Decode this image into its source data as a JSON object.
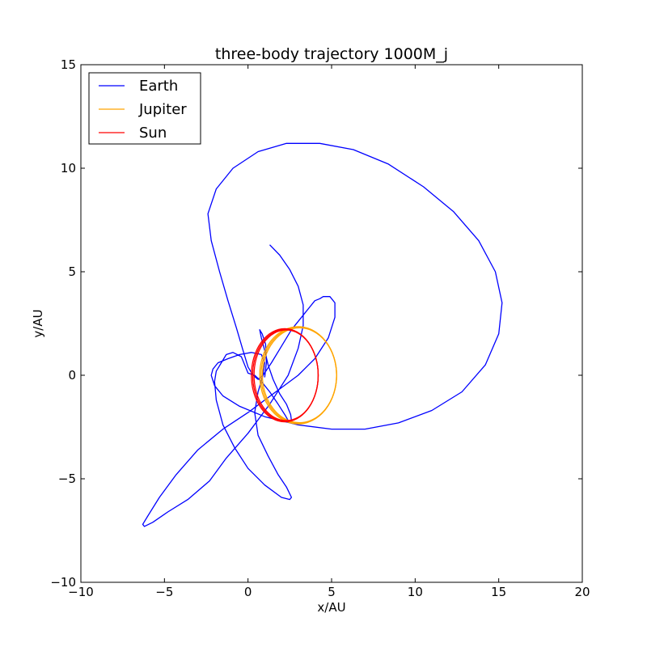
{
  "chart_data": {
    "type": "line",
    "title": "three-body trajectory 1000M_j",
    "xlabel": "x/AU",
    "ylabel": "y/AU",
    "xlim": [
      -10,
      20
    ],
    "ylim": [
      -10,
      15
    ],
    "xticks": [
      -10,
      -5,
      0,
      5,
      10,
      15,
      20
    ],
    "yticks": [
      -10,
      -5,
      0,
      5,
      10,
      15
    ],
    "xtick_labels": [
      "−10",
      "−5",
      "0",
      "5",
      "10",
      "15",
      "20"
    ],
    "ytick_labels": [
      "−10",
      "−5",
      "0",
      "5",
      "10",
      "15"
    ],
    "grid": false,
    "legend_position": "top-left",
    "series": [
      {
        "name": "Earth",
        "color": "#0000ff",
        "x": [
          1.0,
          1.1,
          1.05,
          0.85,
          0.7,
          0.8,
          1.0,
          1.2,
          1.5,
          1.9,
          2.3,
          2.55,
          2.6,
          2.45,
          2.2,
          1.8,
          1.3,
          0.8,
          0.4,
          0.0,
          -0.4,
          -0.9,
          -1.3,
          -1.6,
          -1.9,
          -2.0,
          -1.9,
          -1.5,
          -0.8,
          0.0,
          1.0,
          2.0,
          2.5,
          2.6,
          2.3,
          1.8,
          1.2,
          0.6,
          0.4,
          0.6,
          0.9,
          1.0,
          0.8,
          0.2,
          -0.5,
          -1.2,
          -1.8,
          -2.1,
          -2.2,
          -2.0,
          -1.5,
          -0.5,
          1.0,
          3.0,
          5.0,
          7.0,
          9.0,
          11.0,
          12.8,
          14.2,
          15.0,
          15.2,
          14.8,
          13.8,
          12.3,
          10.5,
          8.4,
          6.3,
          4.3,
          2.3,
          0.6,
          -0.9,
          -1.9,
          -2.4,
          -2.2,
          -1.7,
          -1.2,
          -0.7,
          -0.3,
          0.0,
          0.3,
          0.6,
          0.9,
          1.4,
          2.0,
          2.6,
          3.2,
          3.7,
          4.0,
          4.3,
          4.5,
          4.9,
          5.2,
          5.2,
          4.8,
          4.0,
          3.0,
          2.0,
          1.0,
          0.0,
          -1.5,
          -3.0,
          -4.3,
          -5.3,
          -6.0,
          -6.3,
          -6.2,
          -5.7,
          -4.8,
          -3.6,
          -2.3,
          -1.3,
          0.0,
          1.3,
          2.4,
          3.0,
          3.3,
          3.3,
          3.0,
          2.5,
          1.9,
          1.3
        ],
        "y": [
          -0.1,
          0.6,
          1.5,
          2.0,
          2.2,
          1.8,
          1.2,
          0.5,
          -0.2,
          -0.9,
          -1.4,
          -1.9,
          -2.2,
          -2.25,
          -1.9,
          -1.4,
          -0.8,
          -0.3,
          0.0,
          0.1,
          0.9,
          1.1,
          1.0,
          0.6,
          0.2,
          -0.3,
          -1.2,
          -2.4,
          -3.5,
          -4.5,
          -5.3,
          -5.9,
          -6.0,
          -5.9,
          -5.4,
          -4.8,
          -3.9,
          -2.9,
          -1.8,
          -0.8,
          0.0,
          0.6,
          1.0,
          1.1,
          1.0,
          0.8,
          0.6,
          0.3,
          0.0,
          -0.5,
          -1.0,
          -1.5,
          -2.0,
          -2.4,
          -2.6,
          -2.6,
          -2.3,
          -1.7,
          -0.8,
          0.5,
          2.0,
          3.5,
          5.0,
          6.5,
          7.9,
          9.1,
          10.2,
          10.9,
          11.2,
          11.2,
          10.8,
          10.0,
          9.0,
          7.8,
          6.5,
          5.0,
          3.6,
          2.3,
          1.2,
          0.4,
          0.0,
          -0.2,
          0.0,
          0.6,
          1.4,
          2.2,
          2.8,
          3.3,
          3.6,
          3.7,
          3.8,
          3.8,
          3.5,
          2.8,
          1.8,
          0.8,
          0.0,
          -0.6,
          -1.2,
          -1.8,
          -2.6,
          -3.6,
          -4.8,
          -5.9,
          -6.8,
          -7.2,
          -7.3,
          -7.1,
          -6.6,
          -6.0,
          -5.1,
          -4.0,
          -2.8,
          -1.4,
          0.0,
          1.3,
          2.4,
          3.4,
          4.3,
          5.1,
          5.8,
          6.3
        ]
      },
      {
        "name": "Jupiter",
        "color": "#ffa500",
        "cx": 3.0,
        "cy": 0.0,
        "rx": 2.3,
        "ry": 2.35
      },
      {
        "name": "Sun",
        "color": "#ff0000",
        "cx": 2.2,
        "cy": 0.0,
        "rx": 2.0,
        "ry": 2.25
      }
    ]
  }
}
